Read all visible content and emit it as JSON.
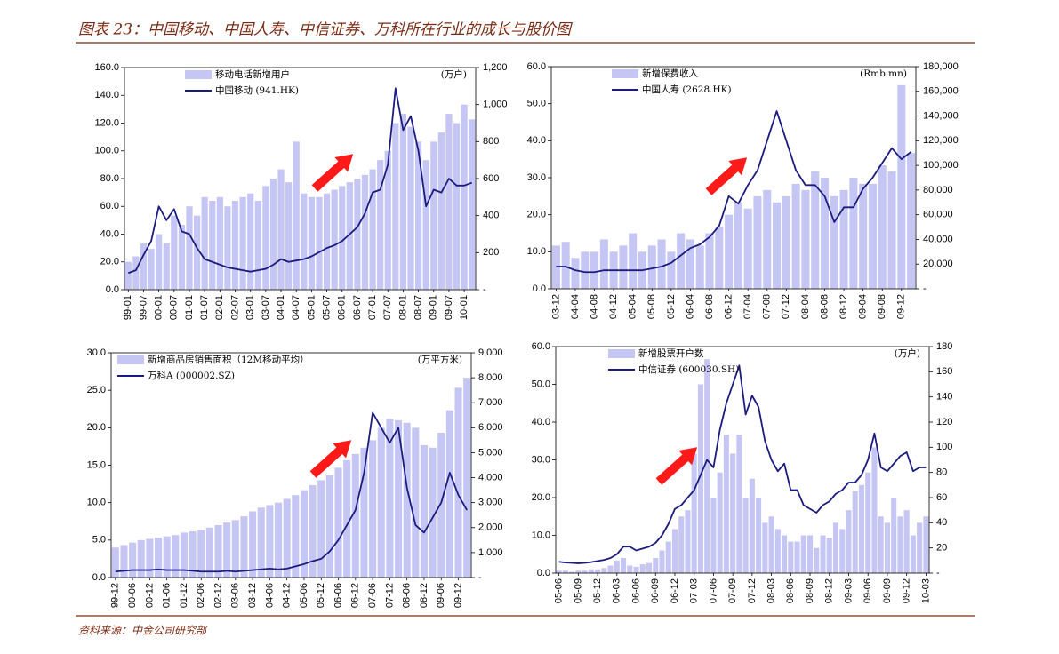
{
  "title": "图表 23：中国移动、中国人寿、中信证券、万科所在行业的成长与股价图",
  "source": "资料来源：中金公司研究部",
  "chart_data": [
    {
      "type": "combo",
      "categories": [
        "99-01",
        null,
        "99-07",
        null,
        "00-01",
        null,
        "00-07",
        null,
        "01-01",
        null,
        "01-07",
        null,
        "02-01",
        null,
        "02-07",
        null,
        "03-01",
        null,
        "03-07",
        null,
        "04-01",
        null,
        "04-07",
        null,
        "05-01",
        null,
        "05-07",
        null,
        "06-01",
        null,
        "06-07",
        null,
        "07-01",
        null,
        "07-07",
        null,
        "08-01",
        null,
        "08-07",
        null,
        "09-01",
        null,
        "09-07",
        null,
        "10-01",
        null
      ],
      "series": [
        {
          "name": "移动电话新增用户",
          "type": "bar",
          "axis": "y2",
          "color": "#c6c6f4",
          "values": [
            150,
            180,
            250,
            220,
            300,
            250,
            400,
            350,
            450,
            400,
            500,
            480,
            500,
            450,
            480,
            500,
            520,
            480,
            560,
            600,
            650,
            580,
            800,
            520,
            500,
            500,
            520,
            540,
            560,
            580,
            600,
            620,
            650,
            700,
            750,
            900,
            950,
            880,
            800,
            700,
            800,
            850,
            950,
            900,
            1000,
            920
          ]
        },
        {
          "name": "中国移动 (941.HK)",
          "type": "line",
          "color": "#1c1c7e",
          "values": [
            12,
            14,
            25,
            35,
            60,
            50,
            58,
            42,
            40,
            30,
            22,
            20,
            18,
            16,
            15,
            14,
            13,
            14,
            15,
            18,
            22,
            20,
            21,
            22,
            24,
            27,
            30,
            32,
            35,
            40,
            45,
            55,
            70,
            72,
            90,
            145,
            115,
            125,
            100,
            60,
            72,
            70,
            80,
            75,
            75,
            77
          ]
        }
      ],
      "y2_label": "(万户)",
      "ylim": [
        0,
        160
      ],
      "yticks": [
        {
          "value": 0,
          "label": "0.0"
        },
        {
          "value": 20,
          "label": "20.0"
        },
        {
          "value": 40,
          "label": "40.0"
        },
        {
          "value": 60,
          "label": "60.0"
        },
        {
          "value": 80,
          "label": "80.0"
        },
        {
          "value": 100,
          "label": "100.0"
        },
        {
          "value": 120,
          "label": "120.0"
        },
        {
          "value": 140,
          "label": "140.0"
        },
        {
          "value": 160,
          "label": "160.0"
        }
      ],
      "y2lim": [
        0,
        1200
      ],
      "y2ticks": [
        {
          "value": 0,
          "label": "-"
        },
        200,
        400,
        600,
        800,
        {
          "value": 1000,
          "label": "1,000"
        },
        {
          "value": 1200,
          "label": "1,200"
        }
      ]
    },
    {
      "type": "combo",
      "categories": [
        "03-12",
        null,
        "04-04",
        null,
        "04-08",
        null,
        "04-12",
        null,
        "05-04",
        null,
        "05-08",
        null,
        "05-12",
        null,
        "06-04",
        null,
        "06-08",
        null,
        "06-12",
        null,
        "07-04",
        null,
        "07-08",
        null,
        "07-12",
        null,
        "08-04",
        null,
        "08-08",
        null,
        "08-12",
        null,
        "09-04",
        null,
        "09-08",
        null,
        "09-12",
        null
      ],
      "series": [
        {
          "name": "新增保费收入",
          "type": "bar",
          "axis": "y2",
          "color": "#c6c6f4",
          "values": [
            35000,
            38000,
            25000,
            30000,
            30000,
            40000,
            30000,
            35000,
            45000,
            30000,
            35000,
            40000,
            30000,
            45000,
            40000,
            35000,
            45000,
            50000,
            60000,
            70000,
            65000,
            75000,
            80000,
            70000,
            75000,
            85000,
            80000,
            95000,
            90000,
            75000,
            80000,
            90000,
            85000,
            85000,
            100000,
            95000,
            165000,
            110000
          ]
        },
        {
          "name": "中国人寿 (2628.HK)",
          "type": "line",
          "color": "#1c1c7e",
          "values": [
            6,
            6,
            5,
            4.5,
            4.5,
            5,
            5,
            5,
            5,
            5,
            5.5,
            6,
            7,
            9,
            11,
            12,
            14,
            17,
            25,
            23,
            28,
            32,
            40,
            48,
            40,
            32,
            28,
            28,
            25,
            18,
            22,
            22,
            27,
            30,
            34,
            38,
            35,
            37
          ]
        }
      ],
      "y2_label": "(Rmb mn)",
      "ylim": [
        0,
        60
      ],
      "yticks": [
        {
          "value": 0,
          "label": "0.0"
        },
        {
          "value": 10,
          "label": "10.0"
        },
        {
          "value": 20,
          "label": "20.0"
        },
        {
          "value": 30,
          "label": "30.0"
        },
        {
          "value": 40,
          "label": "40.0"
        },
        {
          "value": 50,
          "label": "50.0"
        },
        {
          "value": 60,
          "label": "60.0"
        }
      ],
      "y2lim": [
        0,
        180000
      ],
      "y2ticks": [
        {
          "value": 0,
          "label": "-"
        },
        {
          "value": 20000,
          "label": "20,000"
        },
        {
          "value": 40000,
          "label": "40,000"
        },
        {
          "value": 60000,
          "label": "60,000"
        },
        {
          "value": 80000,
          "label": "80,000"
        },
        {
          "value": 100000,
          "label": "100,000"
        },
        {
          "value": 120000,
          "label": "120,000"
        },
        {
          "value": 140000,
          "label": "140,000"
        },
        {
          "value": 160000,
          "label": "160,000"
        },
        {
          "value": 180000,
          "label": "180,000"
        }
      ]
    },
    {
      "type": "combo",
      "categories": [
        "99-12",
        null,
        "00-06",
        null,
        "00-12",
        null,
        "01-06",
        null,
        "01-12",
        null,
        "02-06",
        null,
        "02-12",
        null,
        "03-06",
        null,
        "03-12",
        null,
        "04-06",
        null,
        "04-12",
        null,
        "05-06",
        null,
        "05-12",
        null,
        "06-06",
        null,
        "06-12",
        null,
        "07-06",
        null,
        "07-12",
        null,
        "08-06",
        null,
        "08-12",
        null,
        "09-06",
        null,
        "09-12",
        null
      ],
      "series": [
        {
          "name": "新增商品房销售面积（12M移动平均）",
          "type": "bar",
          "axis": "y2",
          "color": "#c6c6f4",
          "values": [
            1200,
            1300,
            1400,
            1500,
            1550,
            1600,
            1650,
            1700,
            1800,
            1850,
            1900,
            2000,
            2100,
            2200,
            2300,
            2450,
            2650,
            2800,
            2900,
            3000,
            3150,
            3300,
            3500,
            3700,
            3900,
            4100,
            4400,
            4700,
            4950,
            5200,
            5500,
            6000,
            6350,
            6300,
            6200,
            6000,
            5300,
            5200,
            5800,
            6700,
            7600,
            8000
          ]
        },
        {
          "name": "万科A (000002.SZ)",
          "type": "line",
          "color": "#1c1c7e",
          "values": [
            0.8,
            0.9,
            1.0,
            1.0,
            1.0,
            1.1,
            1.0,
            1.0,
            1.0,
            0.9,
            0.8,
            0.8,
            0.8,
            0.9,
            0.8,
            0.9,
            1.0,
            1.1,
            1.2,
            1.1,
            1.2,
            1.5,
            1.8,
            2.2,
            2.5,
            3.5,
            5,
            7,
            9,
            14,
            22,
            20,
            18,
            20,
            12,
            7,
            6,
            8,
            10,
            14,
            11,
            9
          ]
        }
      ],
      "y2_label": "(万平方米)",
      "ylim": [
        0,
        30
      ],
      "yticks": [
        {
          "value": 0,
          "label": "0.0"
        },
        {
          "value": 5,
          "label": "5.0"
        },
        {
          "value": 10,
          "label": "10.0"
        },
        {
          "value": 15,
          "label": "15.0"
        },
        {
          "value": 20,
          "label": "20.0"
        },
        {
          "value": 25,
          "label": "25.0"
        },
        {
          "value": 30,
          "label": "30.0"
        }
      ],
      "y2lim": [
        0,
        9000
      ],
      "y2ticks": [
        {
          "value": 0,
          "label": "-"
        },
        {
          "value": 1000,
          "label": "1,000"
        },
        {
          "value": 2000,
          "label": "2,000"
        },
        {
          "value": 3000,
          "label": "3,000"
        },
        {
          "value": 4000,
          "label": "4,000"
        },
        {
          "value": 5000,
          "label": "5,000"
        },
        {
          "value": 6000,
          "label": "6,000"
        },
        {
          "value": 7000,
          "label": "7,000"
        },
        {
          "value": 8000,
          "label": "8,000"
        },
        {
          "value": 9000,
          "label": "9,000"
        }
      ]
    },
    {
      "type": "combo",
      "categories": [
        "05-06",
        null,
        null,
        "05-09",
        null,
        null,
        "05-12",
        null,
        null,
        "06-03",
        null,
        null,
        "06-06",
        null,
        null,
        "06-09",
        null,
        null,
        "06-12",
        null,
        null,
        "07-03",
        null,
        null,
        "07-06",
        null,
        null,
        "07-09",
        null,
        null,
        "07-12",
        null,
        null,
        "08-03",
        null,
        null,
        "08-06",
        null,
        null,
        "08-09",
        null,
        null,
        "08-12",
        null,
        null,
        "09-03",
        null,
        null,
        "09-06",
        null,
        null,
        "09-09",
        null,
        null,
        "09-12",
        null,
        null,
        "10-03"
      ],
      "series": [
        {
          "name": "新增股票开户数",
          "type": "bar",
          "axis": "y2",
          "color": "#c6c6f4",
          "values": [
            2,
            2,
            1,
            2,
            2,
            3,
            3,
            4,
            6,
            10,
            12,
            6,
            5,
            7,
            8,
            12,
            18,
            25,
            35,
            45,
            50,
            95,
            150,
            170,
            60,
            80,
            110,
            95,
            110,
            60,
            75,
            60,
            40,
            45,
            35,
            30,
            25,
            25,
            30,
            30,
            20,
            30,
            28,
            40,
            35,
            50,
            65,
            70,
            80,
            100,
            45,
            40,
            60,
            45,
            50,
            30,
            40,
            45
          ]
        },
        {
          "name": "中信证券 (600030.SH)",
          "type": "line",
          "color": "#1c1c7e",
          "values": [
            3,
            2.8,
            2.7,
            2.6,
            2.7,
            2.9,
            3.2,
            3.5,
            4,
            5,
            7,
            7,
            6,
            6.5,
            7,
            8,
            10,
            13,
            17,
            18,
            20,
            22,
            26,
            30,
            28,
            38,
            45,
            50,
            55,
            42,
            47,
            44,
            35,
            30,
            27,
            29,
            22,
            22,
            18,
            17,
            16,
            18,
            19,
            21,
            22,
            24,
            24,
            26,
            30,
            37,
            28,
            27,
            29,
            31,
            32,
            27,
            28,
            28
          ]
        }
      ],
      "y2_label": "(万户)",
      "ylim": [
        0,
        60
      ],
      "yticks": [
        {
          "value": 0,
          "label": "0.0"
        },
        {
          "value": 10,
          "label": "10.0"
        },
        {
          "value": 20,
          "label": "20.0"
        },
        {
          "value": 30,
          "label": "30.0"
        },
        {
          "value": 40,
          "label": "40.0"
        },
        {
          "value": 50,
          "label": "50.0"
        },
        {
          "value": 60,
          "label": "60.0"
        }
      ],
      "y2lim": [
        0,
        180
      ],
      "y2ticks": [
        {
          "value": 0,
          "label": "-"
        },
        20,
        40,
        60,
        80,
        100,
        120,
        140,
        160,
        180
      ]
    }
  ]
}
